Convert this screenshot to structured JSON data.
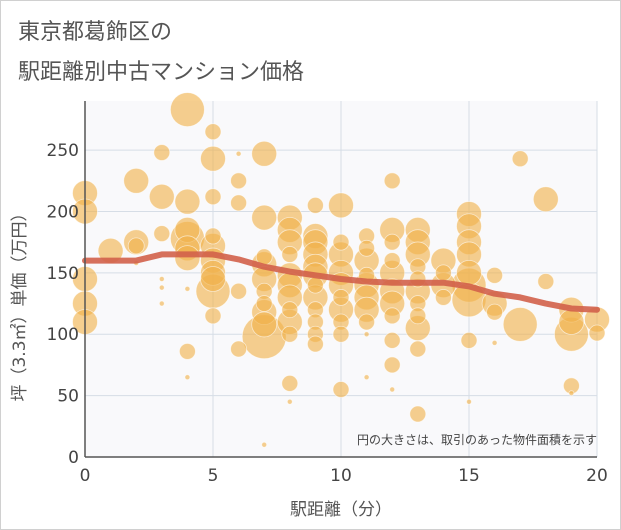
{
  "chart_data": {
    "type": "scatter",
    "title_lines": [
      "東京都葛飾区の",
      "駅距離別中古マンション価格"
    ],
    "xlabel": "駅距離（分）",
    "ylabel": "坪（3.3㎡）単価（万円）",
    "xlim": [
      0,
      20
    ],
    "ylim": [
      0,
      290
    ],
    "x_ticks": [
      0,
      5,
      10,
      15,
      20
    ],
    "y_ticks": [
      0,
      50,
      100,
      150,
      200,
      250
    ],
    "grid": true,
    "annotation": "円の大きさは、取引のあった物件面積を示す",
    "colors": {
      "bubble": "#f0b14a",
      "trend": "#d2604a",
      "grid": "#d6dde6",
      "plot_bg": "#f9f9fb",
      "axis": "#555555"
    },
    "series": [
      {
        "type": "bubble",
        "points": [
          {
            "x": 0,
            "y": 215,
            "r": 3
          },
          {
            "x": 0,
            "y": 200,
            "r": 3
          },
          {
            "x": 0,
            "y": 145,
            "r": 3
          },
          {
            "x": 0,
            "y": 125,
            "r": 3
          },
          {
            "x": 0,
            "y": 110,
            "r": 3
          },
          {
            "x": 1,
            "y": 168,
            "r": 3
          },
          {
            "x": 2,
            "y": 225,
            "r": 3
          },
          {
            "x": 2,
            "y": 175,
            "r": 3
          },
          {
            "x": 2,
            "y": 172,
            "r": 2
          },
          {
            "x": 2,
            "y": 158,
            "r": 1
          },
          {
            "x": 3,
            "y": 248,
            "r": 2
          },
          {
            "x": 3,
            "y": 212,
            "r": 3
          },
          {
            "x": 3,
            "y": 182,
            "r": 2
          },
          {
            "x": 3,
            "y": 145,
            "r": 1
          },
          {
            "x": 3,
            "y": 138,
            "r": 1
          },
          {
            "x": 3,
            "y": 125,
            "r": 1
          },
          {
            "x": 4,
            "y": 283,
            "r": 4
          },
          {
            "x": 4,
            "y": 208,
            "r": 3
          },
          {
            "x": 4,
            "y": 185,
            "r": 3
          },
          {
            "x": 4,
            "y": 178,
            "r": 4
          },
          {
            "x": 4,
            "y": 170,
            "r": 3
          },
          {
            "x": 4,
            "y": 162,
            "r": 3
          },
          {
            "x": 4,
            "y": 137,
            "r": 1
          },
          {
            "x": 4,
            "y": 86,
            "r": 2
          },
          {
            "x": 4,
            "y": 65,
            "r": 1
          },
          {
            "x": 5,
            "y": 265,
            "r": 2
          },
          {
            "x": 5,
            "y": 243,
            "r": 3
          },
          {
            "x": 5,
            "y": 212,
            "r": 2
          },
          {
            "x": 5,
            "y": 180,
            "r": 2
          },
          {
            "x": 5,
            "y": 172,
            "r": 3
          },
          {
            "x": 5,
            "y": 160,
            "r": 3
          },
          {
            "x": 5,
            "y": 150,
            "r": 3
          },
          {
            "x": 5,
            "y": 145,
            "r": 3
          },
          {
            "x": 5,
            "y": 135,
            "r": 4
          },
          {
            "x": 5,
            "y": 115,
            "r": 2
          },
          {
            "x": 6,
            "y": 247,
            "r": 1
          },
          {
            "x": 6,
            "y": 225,
            "r": 2
          },
          {
            "x": 6,
            "y": 207,
            "r": 2
          },
          {
            "x": 6,
            "y": 135,
            "r": 2
          },
          {
            "x": 6,
            "y": 88,
            "r": 2
          },
          {
            "x": 7,
            "y": 247,
            "r": 3
          },
          {
            "x": 7,
            "y": 195,
            "r": 3
          },
          {
            "x": 7,
            "y": 163,
            "r": 2
          },
          {
            "x": 7,
            "y": 157,
            "r": 3
          },
          {
            "x": 7,
            "y": 145,
            "r": 3
          },
          {
            "x": 7,
            "y": 135,
            "r": 2
          },
          {
            "x": 7,
            "y": 125,
            "r": 2
          },
          {
            "x": 7,
            "y": 118,
            "r": 3
          },
          {
            "x": 7,
            "y": 108,
            "r": 3
          },
          {
            "x": 7,
            "y": 98,
            "r": 5
          },
          {
            "x": 7,
            "y": 10,
            "r": 1
          },
          {
            "x": 8,
            "y": 195,
            "r": 3
          },
          {
            "x": 8,
            "y": 185,
            "r": 3
          },
          {
            "x": 8,
            "y": 175,
            "r": 3
          },
          {
            "x": 8,
            "y": 165,
            "r": 2
          },
          {
            "x": 8,
            "y": 148,
            "r": 3
          },
          {
            "x": 8,
            "y": 140,
            "r": 3
          },
          {
            "x": 8,
            "y": 130,
            "r": 3
          },
          {
            "x": 8,
            "y": 120,
            "r": 2
          },
          {
            "x": 8,
            "y": 110,
            "r": 3
          },
          {
            "x": 8,
            "y": 100,
            "r": 2
          },
          {
            "x": 8,
            "y": 60,
            "r": 2
          },
          {
            "x": 8,
            "y": 45,
            "r": 1
          },
          {
            "x": 9,
            "y": 205,
            "r": 2
          },
          {
            "x": 9,
            "y": 180,
            "r": 3
          },
          {
            "x": 9,
            "y": 175,
            "r": 3
          },
          {
            "x": 9,
            "y": 165,
            "r": 3
          },
          {
            "x": 9,
            "y": 155,
            "r": 3
          },
          {
            "x": 9,
            "y": 148,
            "r": 3
          },
          {
            "x": 9,
            "y": 140,
            "r": 2
          },
          {
            "x": 9,
            "y": 130,
            "r": 3
          },
          {
            "x": 9,
            "y": 120,
            "r": 2
          },
          {
            "x": 9,
            "y": 110,
            "r": 2
          },
          {
            "x": 9,
            "y": 100,
            "r": 2
          },
          {
            "x": 9,
            "y": 92,
            "r": 2
          },
          {
            "x": 10,
            "y": 205,
            "r": 3
          },
          {
            "x": 10,
            "y": 175,
            "r": 2
          },
          {
            "x": 10,
            "y": 165,
            "r": 3
          },
          {
            "x": 10,
            "y": 150,
            "r": 3
          },
          {
            "x": 10,
            "y": 140,
            "r": 3
          },
          {
            "x": 10,
            "y": 130,
            "r": 2
          },
          {
            "x": 10,
            "y": 120,
            "r": 3
          },
          {
            "x": 10,
            "y": 110,
            "r": 2
          },
          {
            "x": 10,
            "y": 100,
            "r": 2
          },
          {
            "x": 10,
            "y": 55,
            "r": 2
          },
          {
            "x": 11,
            "y": 180,
            "r": 2
          },
          {
            "x": 11,
            "y": 170,
            "r": 2
          },
          {
            "x": 11,
            "y": 160,
            "r": 3
          },
          {
            "x": 11,
            "y": 148,
            "r": 2
          },
          {
            "x": 11,
            "y": 140,
            "r": 3
          },
          {
            "x": 11,
            "y": 130,
            "r": 3
          },
          {
            "x": 11,
            "y": 120,
            "r": 3
          },
          {
            "x": 11,
            "y": 110,
            "r": 2
          },
          {
            "x": 11,
            "y": 100,
            "r": 1
          },
          {
            "x": 11,
            "y": 65,
            "r": 1
          },
          {
            "x": 12,
            "y": 225,
            "r": 2
          },
          {
            "x": 12,
            "y": 185,
            "r": 3
          },
          {
            "x": 12,
            "y": 175,
            "r": 2
          },
          {
            "x": 12,
            "y": 160,
            "r": 2
          },
          {
            "x": 12,
            "y": 150,
            "r": 3
          },
          {
            "x": 12,
            "y": 135,
            "r": 3
          },
          {
            "x": 12,
            "y": 125,
            "r": 3
          },
          {
            "x": 12,
            "y": 115,
            "r": 2
          },
          {
            "x": 12,
            "y": 95,
            "r": 2
          },
          {
            "x": 12,
            "y": 75,
            "r": 2
          },
          {
            "x": 12,
            "y": 55,
            "r": 1
          },
          {
            "x": 13,
            "y": 185,
            "r": 3
          },
          {
            "x": 13,
            "y": 175,
            "r": 3
          },
          {
            "x": 13,
            "y": 165,
            "r": 3
          },
          {
            "x": 13,
            "y": 155,
            "r": 2
          },
          {
            "x": 13,
            "y": 145,
            "r": 2
          },
          {
            "x": 13,
            "y": 135,
            "r": 3
          },
          {
            "x": 13,
            "y": 125,
            "r": 2
          },
          {
            "x": 13,
            "y": 115,
            "r": 2
          },
          {
            "x": 13,
            "y": 105,
            "r": 3
          },
          {
            "x": 13,
            "y": 88,
            "r": 2
          },
          {
            "x": 13,
            "y": 35,
            "r": 2
          },
          {
            "x": 14,
            "y": 160,
            "r": 3
          },
          {
            "x": 14,
            "y": 150,
            "r": 2
          },
          {
            "x": 14,
            "y": 140,
            "r": 3
          },
          {
            "x": 14,
            "y": 130,
            "r": 2
          },
          {
            "x": 15,
            "y": 198,
            "r": 3
          },
          {
            "x": 15,
            "y": 188,
            "r": 3
          },
          {
            "x": 15,
            "y": 175,
            "r": 3
          },
          {
            "x": 15,
            "y": 165,
            "r": 3
          },
          {
            "x": 15,
            "y": 150,
            "r": 3
          },
          {
            "x": 15,
            "y": 140,
            "r": 4
          },
          {
            "x": 15,
            "y": 128,
            "r": 4
          },
          {
            "x": 15,
            "y": 95,
            "r": 2
          },
          {
            "x": 15,
            "y": 45,
            "r": 1
          },
          {
            "x": 16,
            "y": 148,
            "r": 2
          },
          {
            "x": 16,
            "y": 125,
            "r": 3
          },
          {
            "x": 16,
            "y": 118,
            "r": 2
          },
          {
            "x": 16,
            "y": 93,
            "r": 1
          },
          {
            "x": 17,
            "y": 243,
            "r": 2
          },
          {
            "x": 17,
            "y": 108,
            "r": 4
          },
          {
            "x": 18,
            "y": 210,
            "r": 3
          },
          {
            "x": 18,
            "y": 143,
            "r": 2
          },
          {
            "x": 19,
            "y": 120,
            "r": 3
          },
          {
            "x": 19,
            "y": 110,
            "r": 3
          },
          {
            "x": 19,
            "y": 100,
            "r": 4
          },
          {
            "x": 19,
            "y": 58,
            "r": 2
          },
          {
            "x": 19,
            "y": 52,
            "r": 1
          },
          {
            "x": 20,
            "y": 112,
            "r": 3
          },
          {
            "x": 20,
            "y": 101,
            "r": 2
          }
        ]
      },
      {
        "type": "line",
        "x": [
          0,
          1,
          2,
          3,
          4,
          5,
          6,
          7,
          8,
          9,
          10,
          11,
          12,
          13,
          14,
          15,
          16,
          17,
          18,
          19,
          20
        ],
        "y": [
          160,
          160,
          160,
          165,
          165,
          165,
          161,
          155,
          151,
          148,
          145,
          143,
          142,
          142,
          142,
          139,
          133,
          130,
          125,
          121,
          120
        ]
      }
    ]
  }
}
